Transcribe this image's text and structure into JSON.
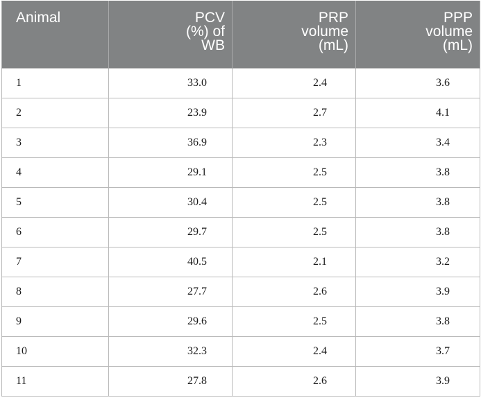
{
  "table": {
    "headers": [
      {
        "lines": [
          "Animal"
        ]
      },
      {
        "lines": [
          "PCV",
          "(%) of",
          "WB"
        ]
      },
      {
        "lines": [
          "PRP",
          "volume",
          "(mL)"
        ]
      },
      {
        "lines": [
          "PPP",
          "volume",
          "(mL)"
        ]
      }
    ],
    "rows": [
      [
        "1",
        "33.0",
        "2.4",
        "3.6"
      ],
      [
        "2",
        "23.9",
        "2.7",
        "4.1"
      ],
      [
        "3",
        "36.9",
        "2.3",
        "3.4"
      ],
      [
        "4",
        "29.1",
        "2.5",
        "3.8"
      ],
      [
        "5",
        "30.4",
        "2.5",
        "3.8"
      ],
      [
        "6",
        "29.7",
        "2.5",
        "3.8"
      ],
      [
        "7",
        "40.5",
        "2.1",
        "3.2"
      ],
      [
        "8",
        "27.7",
        "2.6",
        "3.9"
      ],
      [
        "9",
        "29.6",
        "2.5",
        "3.8"
      ],
      [
        "10",
        "32.3",
        "2.4",
        "3.7"
      ],
      [
        "11",
        "27.8",
        "2.6",
        "3.9"
      ]
    ]
  },
  "colors": {
    "header_bg": "#818384",
    "header_text": "#ffffff",
    "border": "#b9b9b9"
  }
}
